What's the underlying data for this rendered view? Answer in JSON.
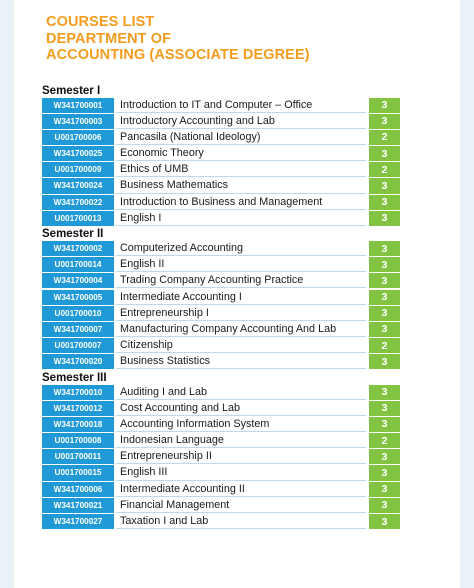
{
  "title": {
    "line1": "COURSES LIST",
    "line2": "DEPARTMENT OF",
    "line3": "ACCOUNTING (ASSOCIATE DEGREE)"
  },
  "colors": {
    "title": "#f39c1e",
    "code_bg": "#1f9ad6",
    "credit_bg": "#82c341"
  },
  "semesters": [
    {
      "label": "Semester I",
      "courses": [
        {
          "code": "W341700001",
          "name": "Introduction to IT and Computer – Office",
          "credits": "3"
        },
        {
          "code": "W341700003",
          "name": "Introductory Accounting and Lab",
          "credits": "3"
        },
        {
          "code": "U001700006",
          "name": "Pancasila (National Ideology)",
          "credits": "2"
        },
        {
          "code": "W341700025",
          "name": "Economic Theory",
          "credits": "3"
        },
        {
          "code": "U001700009",
          "name": "Ethics of UMB",
          "credits": "2"
        },
        {
          "code": "W341700024",
          "name": "Business Mathematics",
          "credits": "3"
        },
        {
          "code": "W341700022",
          "name": "Introduction to Business and Management",
          "credits": "3"
        },
        {
          "code": "U001700013",
          "name": "English I",
          "credits": "3"
        }
      ]
    },
    {
      "label": "Semester II",
      "courses": [
        {
          "code": "W341700002",
          "name": "Computerized Accounting",
          "credits": "3"
        },
        {
          "code": "U001700014",
          "name": "English II",
          "credits": "3"
        },
        {
          "code": "W341700004",
          "name": "Trading Company Accounting Practice",
          "credits": "3"
        },
        {
          "code": "W341700005",
          "name": "Intermediate Accounting I",
          "credits": "3"
        },
        {
          "code": "U001700010",
          "name": "Entrepreneurship I",
          "credits": "3"
        },
        {
          "code": "W341700007",
          "name": "Manufacturing Company Accounting And Lab",
          "credits": "3"
        },
        {
          "code": "U001700007",
          "name": "Citizenship",
          "credits": "2"
        },
        {
          "code": "W341700020",
          "name": "Business Statistics",
          "credits": "3"
        }
      ]
    },
    {
      "label": "Semester III",
      "courses": [
        {
          "code": "W341700010",
          "name": "Auditing I and Lab",
          "credits": "3"
        },
        {
          "code": "W341700012",
          "name": "Cost Accounting and Lab",
          "credits": "3"
        },
        {
          "code": "W341700018",
          "name": "Accounting Information System",
          "credits": "3"
        },
        {
          "code": "U001700008",
          "name": "Indonesian Language",
          "credits": "2"
        },
        {
          "code": "U001700011",
          "name": "Entrepreneurship II",
          "credits": "3"
        },
        {
          "code": "U001700015",
          "name": "English III",
          "credits": "3"
        },
        {
          "code": "W341700006",
          "name": "Intermediate Accounting II",
          "credits": "3"
        },
        {
          "code": "W341700021",
          "name": "Financial Management",
          "credits": "3"
        },
        {
          "code": "W341700027",
          "name": "Taxation I and Lab",
          "credits": "3"
        }
      ]
    }
  ]
}
